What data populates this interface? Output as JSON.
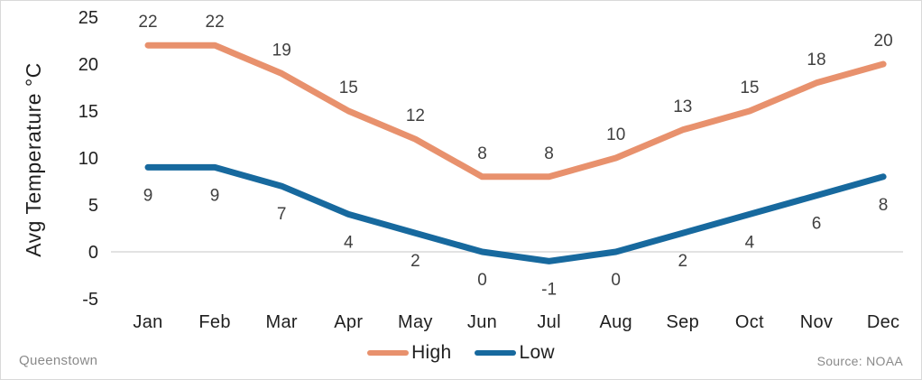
{
  "chart_data": {
    "type": "line",
    "categories": [
      "Jan",
      "Feb",
      "Mar",
      "Apr",
      "May",
      "Jun",
      "Jul",
      "Aug",
      "Sep",
      "Oct",
      "Nov",
      "Dec"
    ],
    "series": [
      {
        "name": "High",
        "color": "#E8916D",
        "label_position": "above",
        "values": [
          22,
          22,
          19,
          15,
          12,
          8,
          8,
          10,
          13,
          15,
          18,
          20
        ]
      },
      {
        "name": "Low",
        "color": "#17699E",
        "label_position": "below",
        "values": [
          9,
          9,
          7,
          4,
          2,
          0,
          -1,
          0,
          2,
          4,
          6,
          8
        ]
      }
    ],
    "title": "",
    "xlabel": "",
    "ylabel": "Avg Temperature °C",
    "y_ticks": [
      25,
      20,
      15,
      10,
      5,
      0,
      -5
    ],
    "ylim": [
      -5,
      25
    ],
    "grid": "zero-line-only",
    "legend_position": "bottom-center",
    "colors": {
      "data_label": "#404040",
      "axis_text": "#1f1f1f",
      "gridline": "#d9d9d9"
    }
  },
  "legend": {
    "items": [
      {
        "label": "High",
        "color": "#E8916D"
      },
      {
        "label": "Low",
        "color": "#17699E"
      }
    ]
  },
  "footer": {
    "location": "Queenstown",
    "source": "Source: NOAA"
  }
}
